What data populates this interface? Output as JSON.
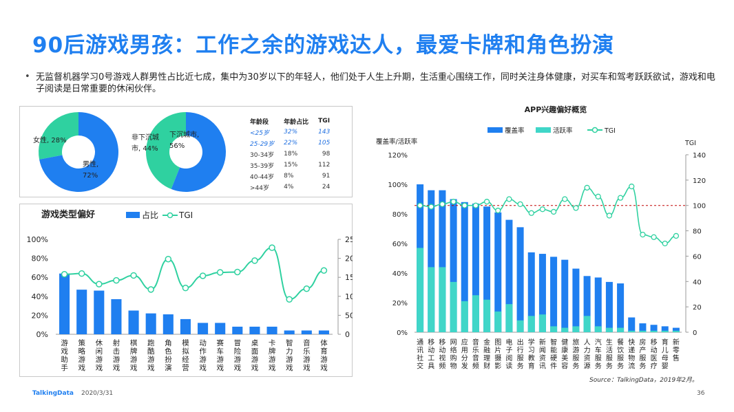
{
  "title": "90后游戏男孩：工作之余的游戏达人，最爱卡牌和角色扮演",
  "bullet": "无监督机器学习0号游戏人群男性占比近七成，集中为30岁以下的年轻人，他们处于人生上升期，生活重心围绕工作，同时关注身体健康，对买车和驾考跃跃欲试，游戏和电子阅读是日常重要的休闲伙伴。",
  "colors": {
    "blue": "#1f7ff0",
    "teal": "#40d6c8",
    "green": "#2fd1a0",
    "title": "#1f7ff0",
    "ref": "#c00000"
  },
  "gender_pie": {
    "slices": [
      {
        "label": "女性, 28%",
        "value": 28,
        "color": "#2fd1a0"
      },
      {
        "label_lines": [
          "男性,",
          "72%"
        ],
        "value": 72,
        "color": "#1f7ff0"
      }
    ]
  },
  "city_pie": {
    "slices": [
      {
        "label_lines": [
          "非下沉城",
          "市, 44%"
        ],
        "value": 44,
        "color": "#2fd1a0"
      },
      {
        "label_lines": [
          "下沉城市,",
          "56%"
        ],
        "value": 56,
        "color": "#1f7ff0"
      }
    ]
  },
  "age_table": {
    "headers": [
      "年龄段",
      "年龄占比",
      "TGI"
    ],
    "rows": [
      [
        "<25岁",
        "32%",
        "143"
      ],
      [
        "25-29岁",
        "22%",
        "105"
      ],
      [
        "30-34岁",
        "18%",
        "98"
      ],
      [
        "35-39岁",
        "15%",
        "112"
      ],
      [
        "40-44岁",
        "8%",
        "91"
      ],
      [
        ">44岁",
        "4%",
        "24"
      ]
    ]
  },
  "chart_data": [
    {
      "type": "bar",
      "title": "游戏类型偏好",
      "categories": [
        "游戏助手",
        "策略游戏",
        "休闲游戏",
        "射击游戏",
        "棋牌游戏",
        "跑酷游戏",
        "角色扮演",
        "模拟经营",
        "动作游戏",
        "赛车游戏",
        "冒险游戏",
        "桌面游戏",
        "卡牌游戏",
        "智力游戏",
        "音乐游戏",
        "体育游戏"
      ],
      "series": [
        {
          "name": "占比",
          "type": "bar",
          "axis": "left",
          "values": [
            64,
            47,
            46,
            37,
            25,
            22,
            21,
            16,
            12,
            12,
            8,
            8,
            8,
            4,
            4,
            4
          ]
        },
        {
          "name": "TGI",
          "type": "line",
          "axis": "right",
          "values": [
            158,
            160,
            132,
            142,
            155,
            118,
            198,
            122,
            154,
            163,
            164,
            194,
            228,
            92,
            120,
            168
          ]
        }
      ],
      "left_axis": {
        "ticks": [
          "0%",
          "20%",
          "40%",
          "60%",
          "80%",
          "100%"
        ],
        "ylim": [
          0,
          100
        ]
      },
      "right_axis": {
        "ticks": [
          "0",
          "50",
          "100",
          "150",
          "200",
          "250"
        ],
        "ylim": [
          0,
          250
        ]
      },
      "legend_position": "top"
    },
    {
      "type": "bar",
      "title": "APP兴趣偏好概览",
      "xlabel": "",
      "ylabel_left": "覆盖率/活跃率",
      "ylabel_right": "TGI",
      "categories": [
        "通讯社交",
        "移动工具",
        "移动视频",
        "网络购物",
        "应用分发",
        "音乐音频",
        "金融理财",
        "图片摄影",
        "电子阅读",
        "出行服务",
        "学习教育",
        "新闻资讯",
        "智能硬件",
        "健康美容",
        "旅游服务",
        "人力资源",
        "汽车服务",
        "生活服务",
        "餐饮服务",
        "快递物流",
        "房产服务",
        "移动医疗",
        "育儿母婴",
        "新零售"
      ],
      "series": [
        {
          "name": "覆盖率",
          "type": "bar",
          "axis": "left",
          "values": [
            100,
            96,
            96,
            90,
            88,
            87,
            85,
            81,
            76,
            71,
            54,
            53,
            51,
            49,
            43,
            38,
            37,
            34,
            33,
            10,
            6,
            5,
            4,
            3
          ]
        },
        {
          "name": "活跃率",
          "type": "bar",
          "axis": "left",
          "values": [
            57,
            44,
            44,
            34,
            21,
            25,
            22,
            14,
            19,
            8,
            11,
            12,
            4,
            3,
            4,
            11,
            4,
            3,
            3,
            1,
            1,
            1,
            1,
            1
          ]
        },
        {
          "name": "TGI",
          "type": "line",
          "axis": "right",
          "values": [
            100,
            99,
            101,
            103,
            100,
            100,
            103,
            96,
            105,
            101,
            94,
            97,
            95,
            105,
            98,
            114,
            107,
            92,
            106,
            115,
            77,
            75,
            70,
            76
          ]
        }
      ],
      "left_axis": {
        "ticks": [
          "0%",
          "20%",
          "40%",
          "60%",
          "80%",
          "100%",
          "120%"
        ],
        "ylim": [
          0,
          120
        ]
      },
      "right_axis": {
        "ticks": [
          "0",
          "20",
          "40",
          "60",
          "80",
          "100",
          "120",
          "140"
        ],
        "ylim": [
          0,
          140
        ]
      },
      "reference_line": {
        "axis": "right",
        "value": 100
      },
      "legend_position": "top"
    }
  ],
  "source": "Source：TalkingData，2019年2月。",
  "footer": {
    "logo": "TalkingData",
    "date": "2020/3/31",
    "page": "36"
  }
}
